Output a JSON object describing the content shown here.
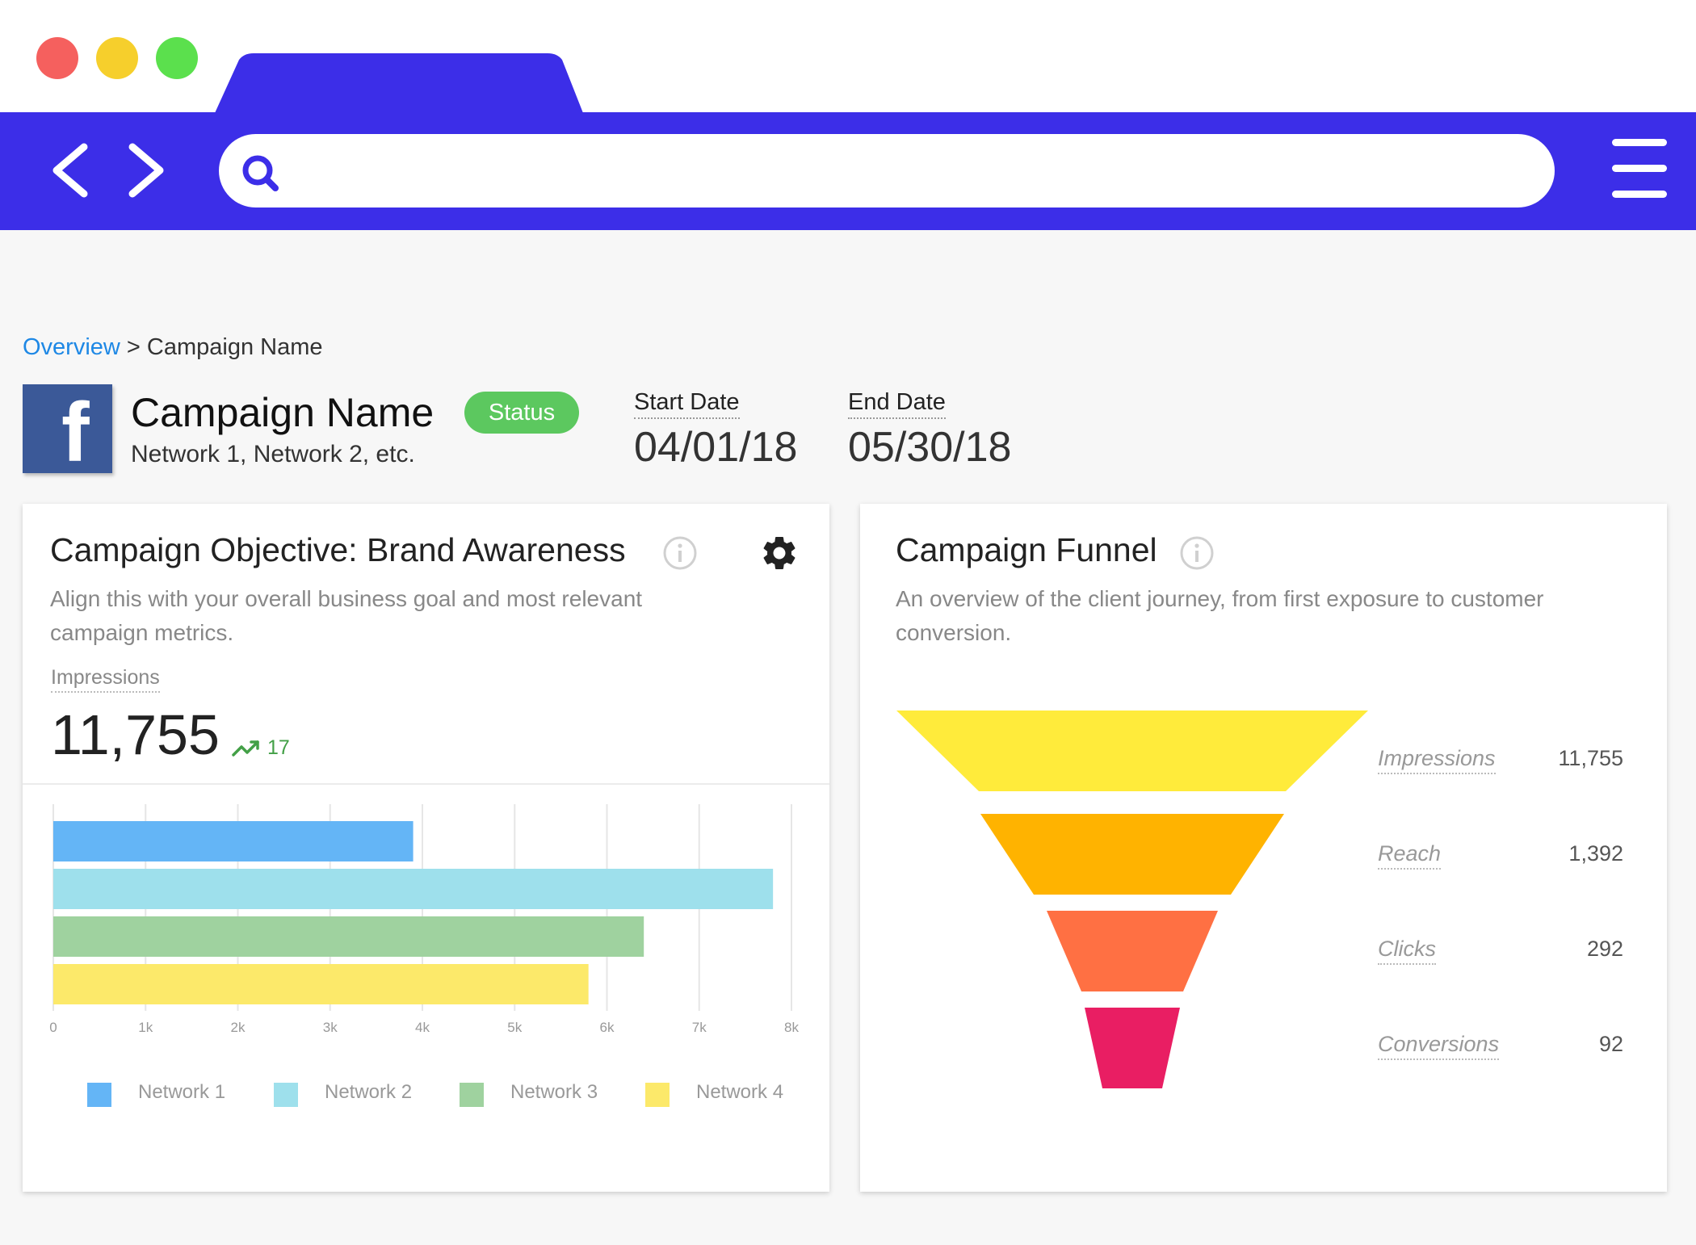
{
  "breadcrumb": {
    "root": "Overview",
    "separator": ">",
    "current": "Campaign Name"
  },
  "campaign": {
    "title": "Campaign Name",
    "networks": "Network 1, Network 2, etc.",
    "status": "Status",
    "logo_letter": "f",
    "start_label": "Start Date",
    "start_value": "04/01/18",
    "end_label": "End Date",
    "end_value": "05/30/18"
  },
  "objective_card": {
    "title": "Campaign Objective: Brand Awareness",
    "description_line1": "Align this with your overall business goal and most relevant",
    "description_line2": "campaign metrics.",
    "metric_label": "Impressions",
    "metric_value": "11,755",
    "trend_value": "17"
  },
  "funnel_card": {
    "title": "Campaign Funnel",
    "description_line1": "An overview of the client journey, from first exposure to customer",
    "description_line2": "conversion."
  },
  "colors": {
    "chrome": "#3c2ee8",
    "status": "#5cc85f",
    "link": "#1e88e5",
    "facebook": "#3b5998"
  },
  "icons": {
    "back": "chevron-left-icon",
    "forward": "chevron-right-icon",
    "search": "search-icon",
    "menu": "hamburger-menu-icon",
    "settings": "gear-icon",
    "info": "info-icon",
    "trend": "trending-up-icon"
  },
  "chart_data": [
    {
      "type": "bar",
      "orientation": "horizontal",
      "categories": [
        "Network 1",
        "Network 2",
        "Network 3",
        "Network 4"
      ],
      "values": [
        3900,
        7800,
        6400,
        5800
      ],
      "colors": [
        "#64b5f6",
        "#9ee0ec",
        "#9fd29f",
        "#fce96a"
      ],
      "xticks": [
        "0",
        "1k",
        "2k",
        "3k",
        "4k",
        "5k",
        "6k",
        "7k",
        "8k"
      ],
      "xlim": [
        0,
        8000
      ],
      "grid": true,
      "legend": "bottom"
    },
    {
      "type": "funnel",
      "categories": [
        "Impressions",
        "Reach",
        "Clicks",
        "Conversions"
      ],
      "values": [
        11755,
        1392,
        292,
        92
      ],
      "value_labels": [
        "11,755",
        "1,392",
        "292",
        "92"
      ],
      "colors": [
        "#ffeb3b",
        "#ffb300",
        "#ff7043",
        "#e91e63"
      ]
    }
  ]
}
